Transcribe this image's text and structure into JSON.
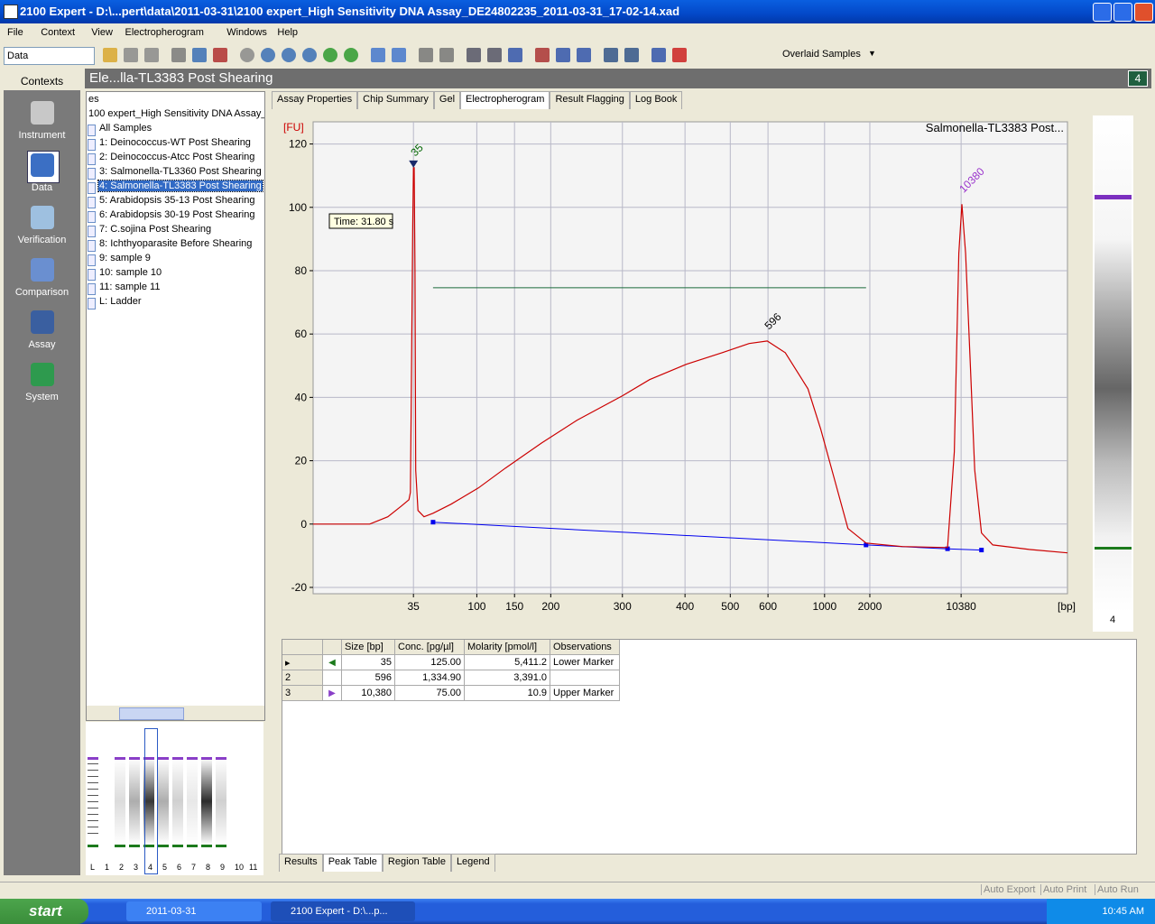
{
  "window": {
    "title": "2100 Expert - D:\\...pert\\data\\2011-03-31\\2100 expert_High Sensitivity DNA Assay_DE24802235_2011-03-31_17-02-14.xad"
  },
  "menu": [
    "File",
    "Context",
    "View",
    "Electropherogram",
    "Windows",
    "Help"
  ],
  "toolbar": {
    "context_select": "Data",
    "view_select": "Overlaid Samples"
  },
  "contexts": {
    "title": "Contexts",
    "items": [
      "Instrument",
      "Data",
      "Verification",
      "Comparison",
      "Assay",
      "System"
    ]
  },
  "header": {
    "title": "Ele...lla-TL3383 Post Shearing",
    "sample_number": "4"
  },
  "tree": {
    "lines": [
      "es",
      "100 expert_High Sensitivity DNA Assay_",
      "All Samples",
      "1: Deinococcus-WT Post Shearing",
      "2: Deinococcus-Atcc Post Shearing",
      "3: Salmonella-TL3360 Post Shearing",
      "4: Salmonella-TL3383 Post Shearing",
      "5: Arabidopsis 35-13 Post Shearing",
      "6: Arabidopsis 30-19 Post Shearing",
      "7: C.sojina Post Shearing",
      "8: Ichthyoparasite Before Shearing",
      "9: sample 9",
      "10: sample 10",
      "11: sample 11",
      "L: Ladder"
    ]
  },
  "gel_thumbnails": {
    "lanes": [
      "L",
      "1",
      "2",
      "3",
      "4",
      "5",
      "6",
      "7",
      "8",
      "9",
      "10",
      "11"
    ]
  },
  "tabs": [
    "Assay Properties",
    "Chip Summary",
    "Gel",
    "Electropherogram",
    "Result Flagging",
    "Log Book"
  ],
  "chart_data": {
    "type": "line",
    "title": "Salmonella-TL3383 Post...",
    "ylabel": "[FU]",
    "xlabel": "[bp]",
    "annotation": "Time: 31.80 s",
    "color": "#cc0000",
    "grid": true,
    "x": [
      20.0,
      23.9,
      27.5,
      29.9,
      31.7,
      32.7,
      32.9,
      33.0,
      33.2,
      33.3,
      33.4,
      33.5,
      33.6,
      33.9,
      34.7,
      35.9,
      38.3,
      41.9,
      45.5,
      50.3,
      55.0,
      61.0,
      64.6,
      69.4,
      74.2,
      77.8,
      80.2,
      82.6,
      85.6,
      87.3,
      89.1,
      90.9,
      93.3,
      98.1,
      104.1,
      105.0,
      105.6,
      106.0,
      106.5,
      107.1,
      107.7,
      108.6,
      110.1,
      114.9,
      120.0
    ],
    "values": [
      0,
      0,
      0,
      2.3,
      5.7,
      7.7,
      10,
      37,
      94,
      112.5,
      112.5,
      80,
      17,
      4.3,
      2.3,
      3.4,
      6.3,
      11.4,
      17.7,
      25.6,
      32.8,
      40.5,
      45.6,
      50.4,
      54.1,
      57,
      57.8,
      54.1,
      42.7,
      29.9,
      14.2,
      -1.4,
      -6,
      -7.1,
      -7.4,
      22.8,
      85.5,
      101,
      85.5,
      51.3,
      17.1,
      -2.8,
      -6.6,
      -8,
      -9.1
    ],
    "baseline": {
      "color": "#0000ee",
      "x": [
        35.9,
        93.3,
        104.1,
        108.6
      ],
      "values": [
        0.6,
        -6.6,
        -7.8,
        -8.2
      ]
    },
    "region_line": {
      "color": "#1a6b3a",
      "x": [
        35.9,
        93.3
      ],
      "values": [
        74.6,
        74.6
      ]
    },
    "peak_labels": [
      {
        "text": "35",
        "x": 33.3,
        "y": 112.5,
        "color": "#006400"
      },
      {
        "text": "596",
        "x": 80.2,
        "y": 57.8,
        "color": "#000000"
      },
      {
        "text": "10380",
        "x": 106.0,
        "y": 101,
        "color": "#9932cc"
      }
    ],
    "xlim": [
      20,
      120
    ],
    "ylim": [
      -22,
      127
    ],
    "xticks": [
      {
        "value": 33.3,
        "label": "35"
      },
      {
        "value": 41.7,
        "label": "100"
      },
      {
        "value": 46.7,
        "label": "150"
      },
      {
        "value": 51.5,
        "label": "200"
      },
      {
        "value": 61.0,
        "label": "300"
      },
      {
        "value": 69.3,
        "label": "400"
      },
      {
        "value": 75.3,
        "label": "500"
      },
      {
        "value": 80.3,
        "label": "600"
      },
      {
        "value": 87.8,
        "label": "1000"
      },
      {
        "value": 93.8,
        "label": "2000"
      },
      {
        "value": 105.9,
        "label": "10380"
      }
    ],
    "yticks": [
      -20,
      0,
      20,
      40,
      60,
      80,
      100,
      120
    ]
  },
  "gel_strip": {
    "label": "4"
  },
  "peak_table": {
    "headers": [
      "Size [bp]",
      "Conc. [pg/µl]",
      "Molarity [pmol/l]",
      "Observations"
    ],
    "rows": [
      {
        "number": null,
        "cells": [
          "35",
          "125.00",
          "5,411.2",
          "Lower Marker"
        ]
      },
      {
        "number": "2",
        "cells": [
          "596",
          "1,334.90",
          "3,391.0",
          null
        ]
      },
      {
        "number": "3",
        "cells": [
          "10,380",
          "75.00",
          "10.9",
          "Upper Marker"
        ]
      }
    ]
  },
  "bottom_tabs": [
    "Results",
    "Peak Table",
    "Region Table",
    "Legend"
  ],
  "status": [
    "Auto Export",
    "Auto Print",
    "Auto Run"
  ],
  "taskbar": {
    "start": "start",
    "items": [
      "2011-03-31",
      "2100 Expert - D:\\...p..."
    ],
    "clock": "10:45 AM"
  }
}
